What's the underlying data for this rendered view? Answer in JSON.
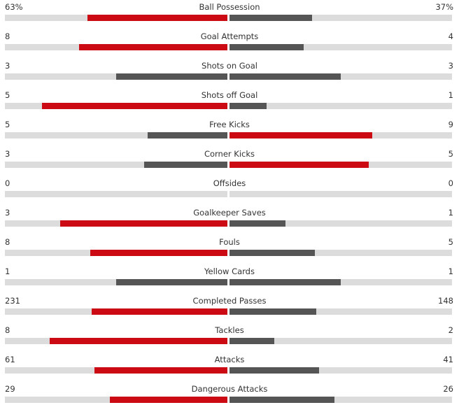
{
  "colors": {
    "leading": "#cc0a14",
    "trailing": "#555555",
    "track": "#dcdcdc"
  },
  "stats": [
    {
      "name": "Ball Possession",
      "home_label": "63%",
      "away_label": "37%",
      "home_bar": 0.63,
      "away_bar": 0.37
    },
    {
      "name": "Goal Attempts",
      "home_label": "8",
      "away_label": "4",
      "home_bar": 0.667,
      "away_bar": 0.333
    },
    {
      "name": "Shots on Goal",
      "home_label": "3",
      "away_label": "3",
      "home_bar": 0.5,
      "away_bar": 0.5
    },
    {
      "name": "Shots off Goal",
      "home_label": "5",
      "away_label": "1",
      "home_bar": 0.833,
      "away_bar": 0.167
    },
    {
      "name": "Free Kicks",
      "home_label": "5",
      "away_label": "9",
      "home_bar": 0.357,
      "away_bar": 0.643
    },
    {
      "name": "Corner Kicks",
      "home_label": "3",
      "away_label": "5",
      "home_bar": 0.375,
      "away_bar": 0.625
    },
    {
      "name": "Offsides",
      "home_label": "0",
      "away_label": "0",
      "home_bar": 0,
      "away_bar": 0
    },
    {
      "name": "Goalkeeper Saves",
      "home_label": "3",
      "away_label": "1",
      "home_bar": 0.75,
      "away_bar": 0.25
    },
    {
      "name": "Fouls",
      "home_label": "8",
      "away_label": "5",
      "home_bar": 0.615,
      "away_bar": 0.385
    },
    {
      "name": "Yellow Cards",
      "home_label": "1",
      "away_label": "1",
      "home_bar": 0.5,
      "away_bar": 0.5
    },
    {
      "name": "Completed Passes",
      "home_label": "231",
      "away_label": "148",
      "home_bar": 0.609,
      "away_bar": 0.391
    },
    {
      "name": "Tackles",
      "home_label": "8",
      "away_label": "2",
      "home_bar": 0.8,
      "away_bar": 0.2
    },
    {
      "name": "Attacks",
      "home_label": "61",
      "away_label": "41",
      "home_bar": 0.598,
      "away_bar": 0.402
    },
    {
      "name": "Dangerous Attacks",
      "home_label": "29",
      "away_label": "26",
      "home_bar": 0.527,
      "away_bar": 0.473
    }
  ]
}
